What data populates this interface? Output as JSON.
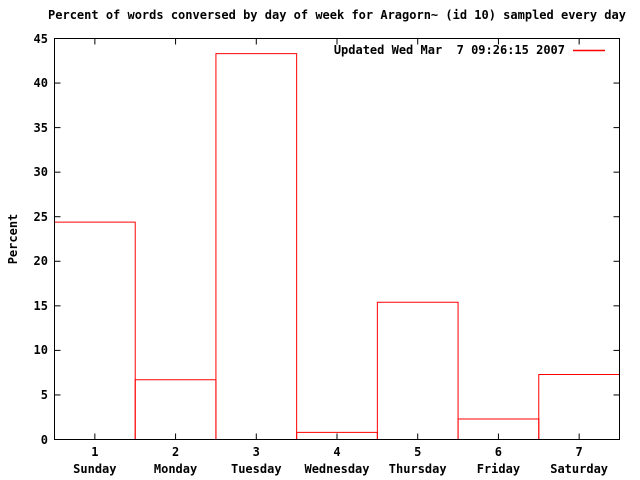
{
  "title": "Percent of words conversed by day of week for Aragorn~ (id 10) sampled every day",
  "ylabel": "Percent",
  "legend": {
    "label": "Updated Wed Mar  7 09:26:15 2007",
    "line_color": "#ff0000",
    "position": "top-right-inside"
  },
  "colors": {
    "series": "#ff0000",
    "axis": "#000000",
    "text": "#000000",
    "background": "#ffffff"
  },
  "chart_data": {
    "type": "bar",
    "title": "Percent of words conversed by day of week for Aragorn~ (id 10) sampled every day",
    "categories": [
      "Sunday",
      "Monday",
      "Tuesday",
      "Wednesday",
      "Thursday",
      "Friday",
      "Saturday"
    ],
    "x_ticks": [
      "1",
      "2",
      "3",
      "4",
      "5",
      "6",
      "7"
    ],
    "values": [
      24.4,
      6.7,
      43.3,
      0.8,
      15.4,
      2.3,
      7.3
    ],
    "xlabel": "",
    "ylabel": "Percent",
    "ylim": [
      0,
      45
    ],
    "xlim": [
      0.5,
      7.5
    ],
    "yticks": [
      0,
      5,
      10,
      15,
      20,
      25,
      30,
      35,
      40,
      45
    ],
    "legend": "Updated Wed Mar  7 09:26:15 2007",
    "legend_position": "top-right",
    "grid": false,
    "bar_style": "outline",
    "bar_outline_color": "#ff0000",
    "bar_fill": "none"
  }
}
